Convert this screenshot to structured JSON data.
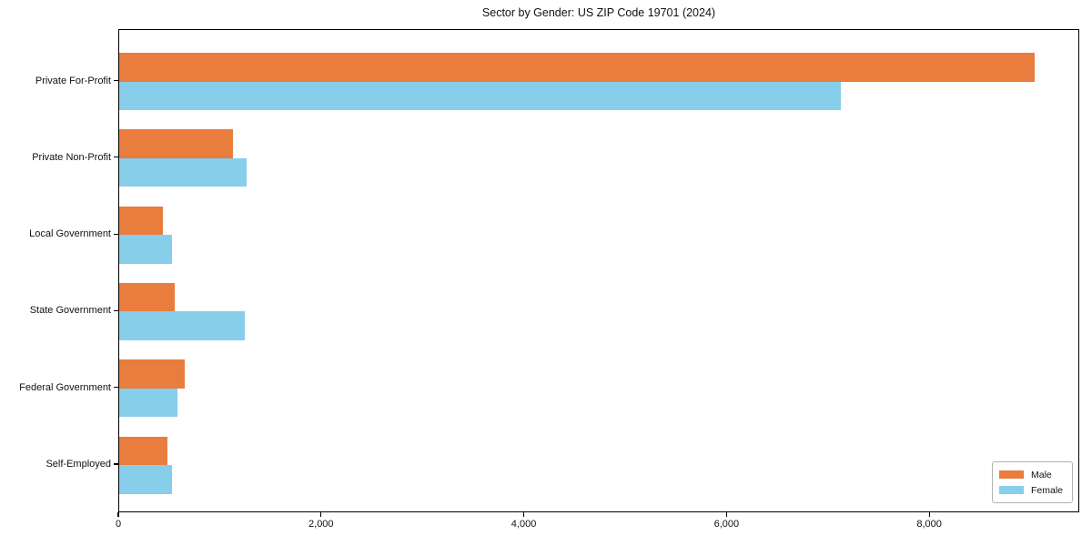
{
  "chart_data": {
    "type": "bar",
    "orientation": "horizontal",
    "title": "Sector by Gender: US ZIP Code 19701 (2024)",
    "categories": [
      "Private For-Profit",
      "Private Non-Profit",
      "Local Government",
      "State Government",
      "Federal Government",
      "Self-Employed"
    ],
    "series": [
      {
        "name": "Male",
        "color": "#e87d3e",
        "values": [
          9030,
          1120,
          430,
          545,
          650,
          480
        ]
      },
      {
        "name": "Female",
        "color": "#87ceeb",
        "values": [
          7120,
          1260,
          520,
          1235,
          575,
          520
        ]
      }
    ],
    "xlim": [
      0,
      9480
    ],
    "xticks": [
      0,
      2000,
      4000,
      6000,
      8000
    ],
    "xtick_labels": [
      "0",
      "2,000",
      "4,000",
      "6,000",
      "8,000"
    ],
    "xlabel": "",
    "ylabel": "",
    "grid": false,
    "legend": {
      "position": "lower right",
      "entries": [
        "Male",
        "Female"
      ]
    }
  }
}
